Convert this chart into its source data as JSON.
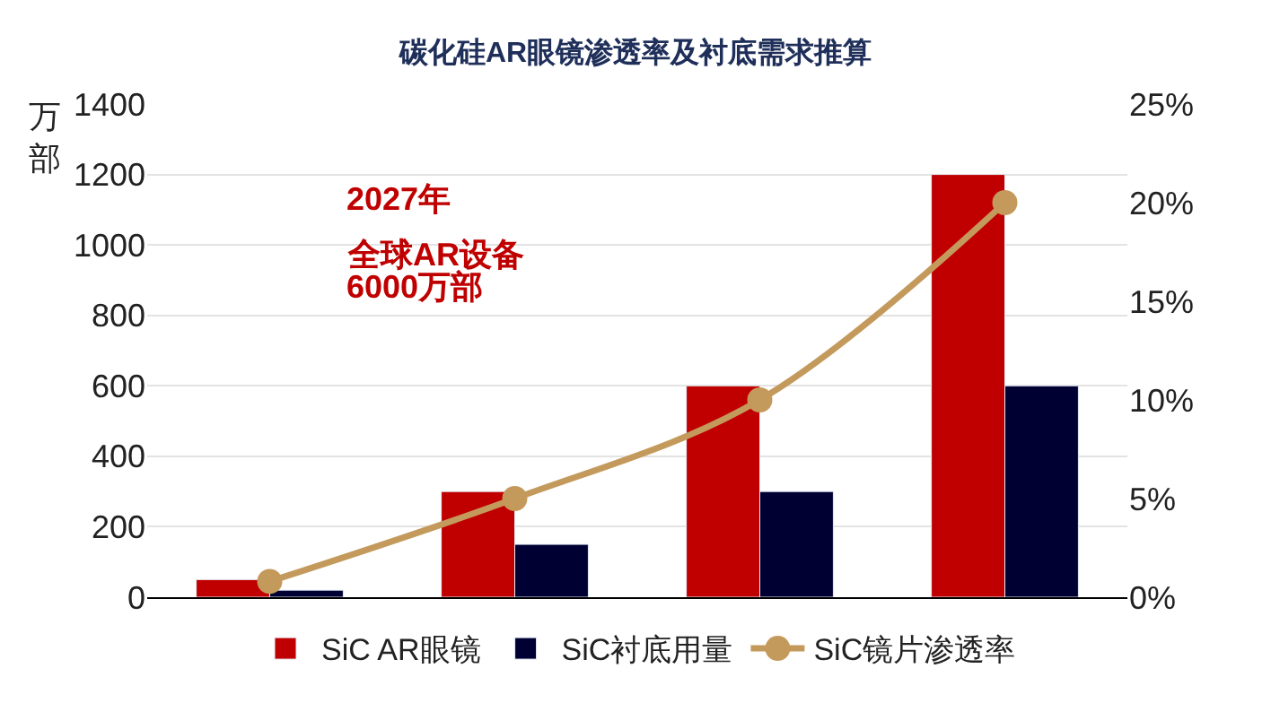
{
  "chart_data": {
    "type": "bar",
    "title": "碳化硅AR眼镜渗透率及衬底需求推算",
    "ylabel": "万部",
    "categories": [
      null,
      null,
      null,
      null
    ],
    "series": [
      {
        "name": "SiC AR眼镜",
        "color": "#c00000",
        "values": [
          50,
          300,
          600,
          1200
        ]
      },
      {
        "name": "SiC衬底用量",
        "color": "#000033",
        "values": [
          20,
          150,
          300,
          600
        ]
      },
      {
        "name": "SiC镜片渗透率",
        "type": "line",
        "axis": "y2",
        "color": "#c49a5c",
        "values": [
          0.8,
          5,
          10,
          20
        ],
        "marker": "circle"
      }
    ],
    "ylim": [
      0,
      1400
    ],
    "yticks": [
      0,
      200,
      400,
      600,
      800,
      1000,
      1200,
      1400
    ],
    "y2lim": [
      0,
      25
    ],
    "y2ticks": [
      {
        "value": 0,
        "label": "0%"
      },
      {
        "value": 5,
        "label": "5%"
      },
      {
        "value": 10,
        "label": "10%"
      },
      {
        "value": 15,
        "label": "15%"
      },
      {
        "value": 20,
        "label": "20%"
      },
      {
        "value": 25,
        "label": "25%"
      }
    ],
    "annotations": [
      "2027年",
      "全球AR设备",
      "6000万部"
    ],
    "grid": "y",
    "legend": "bottom"
  }
}
